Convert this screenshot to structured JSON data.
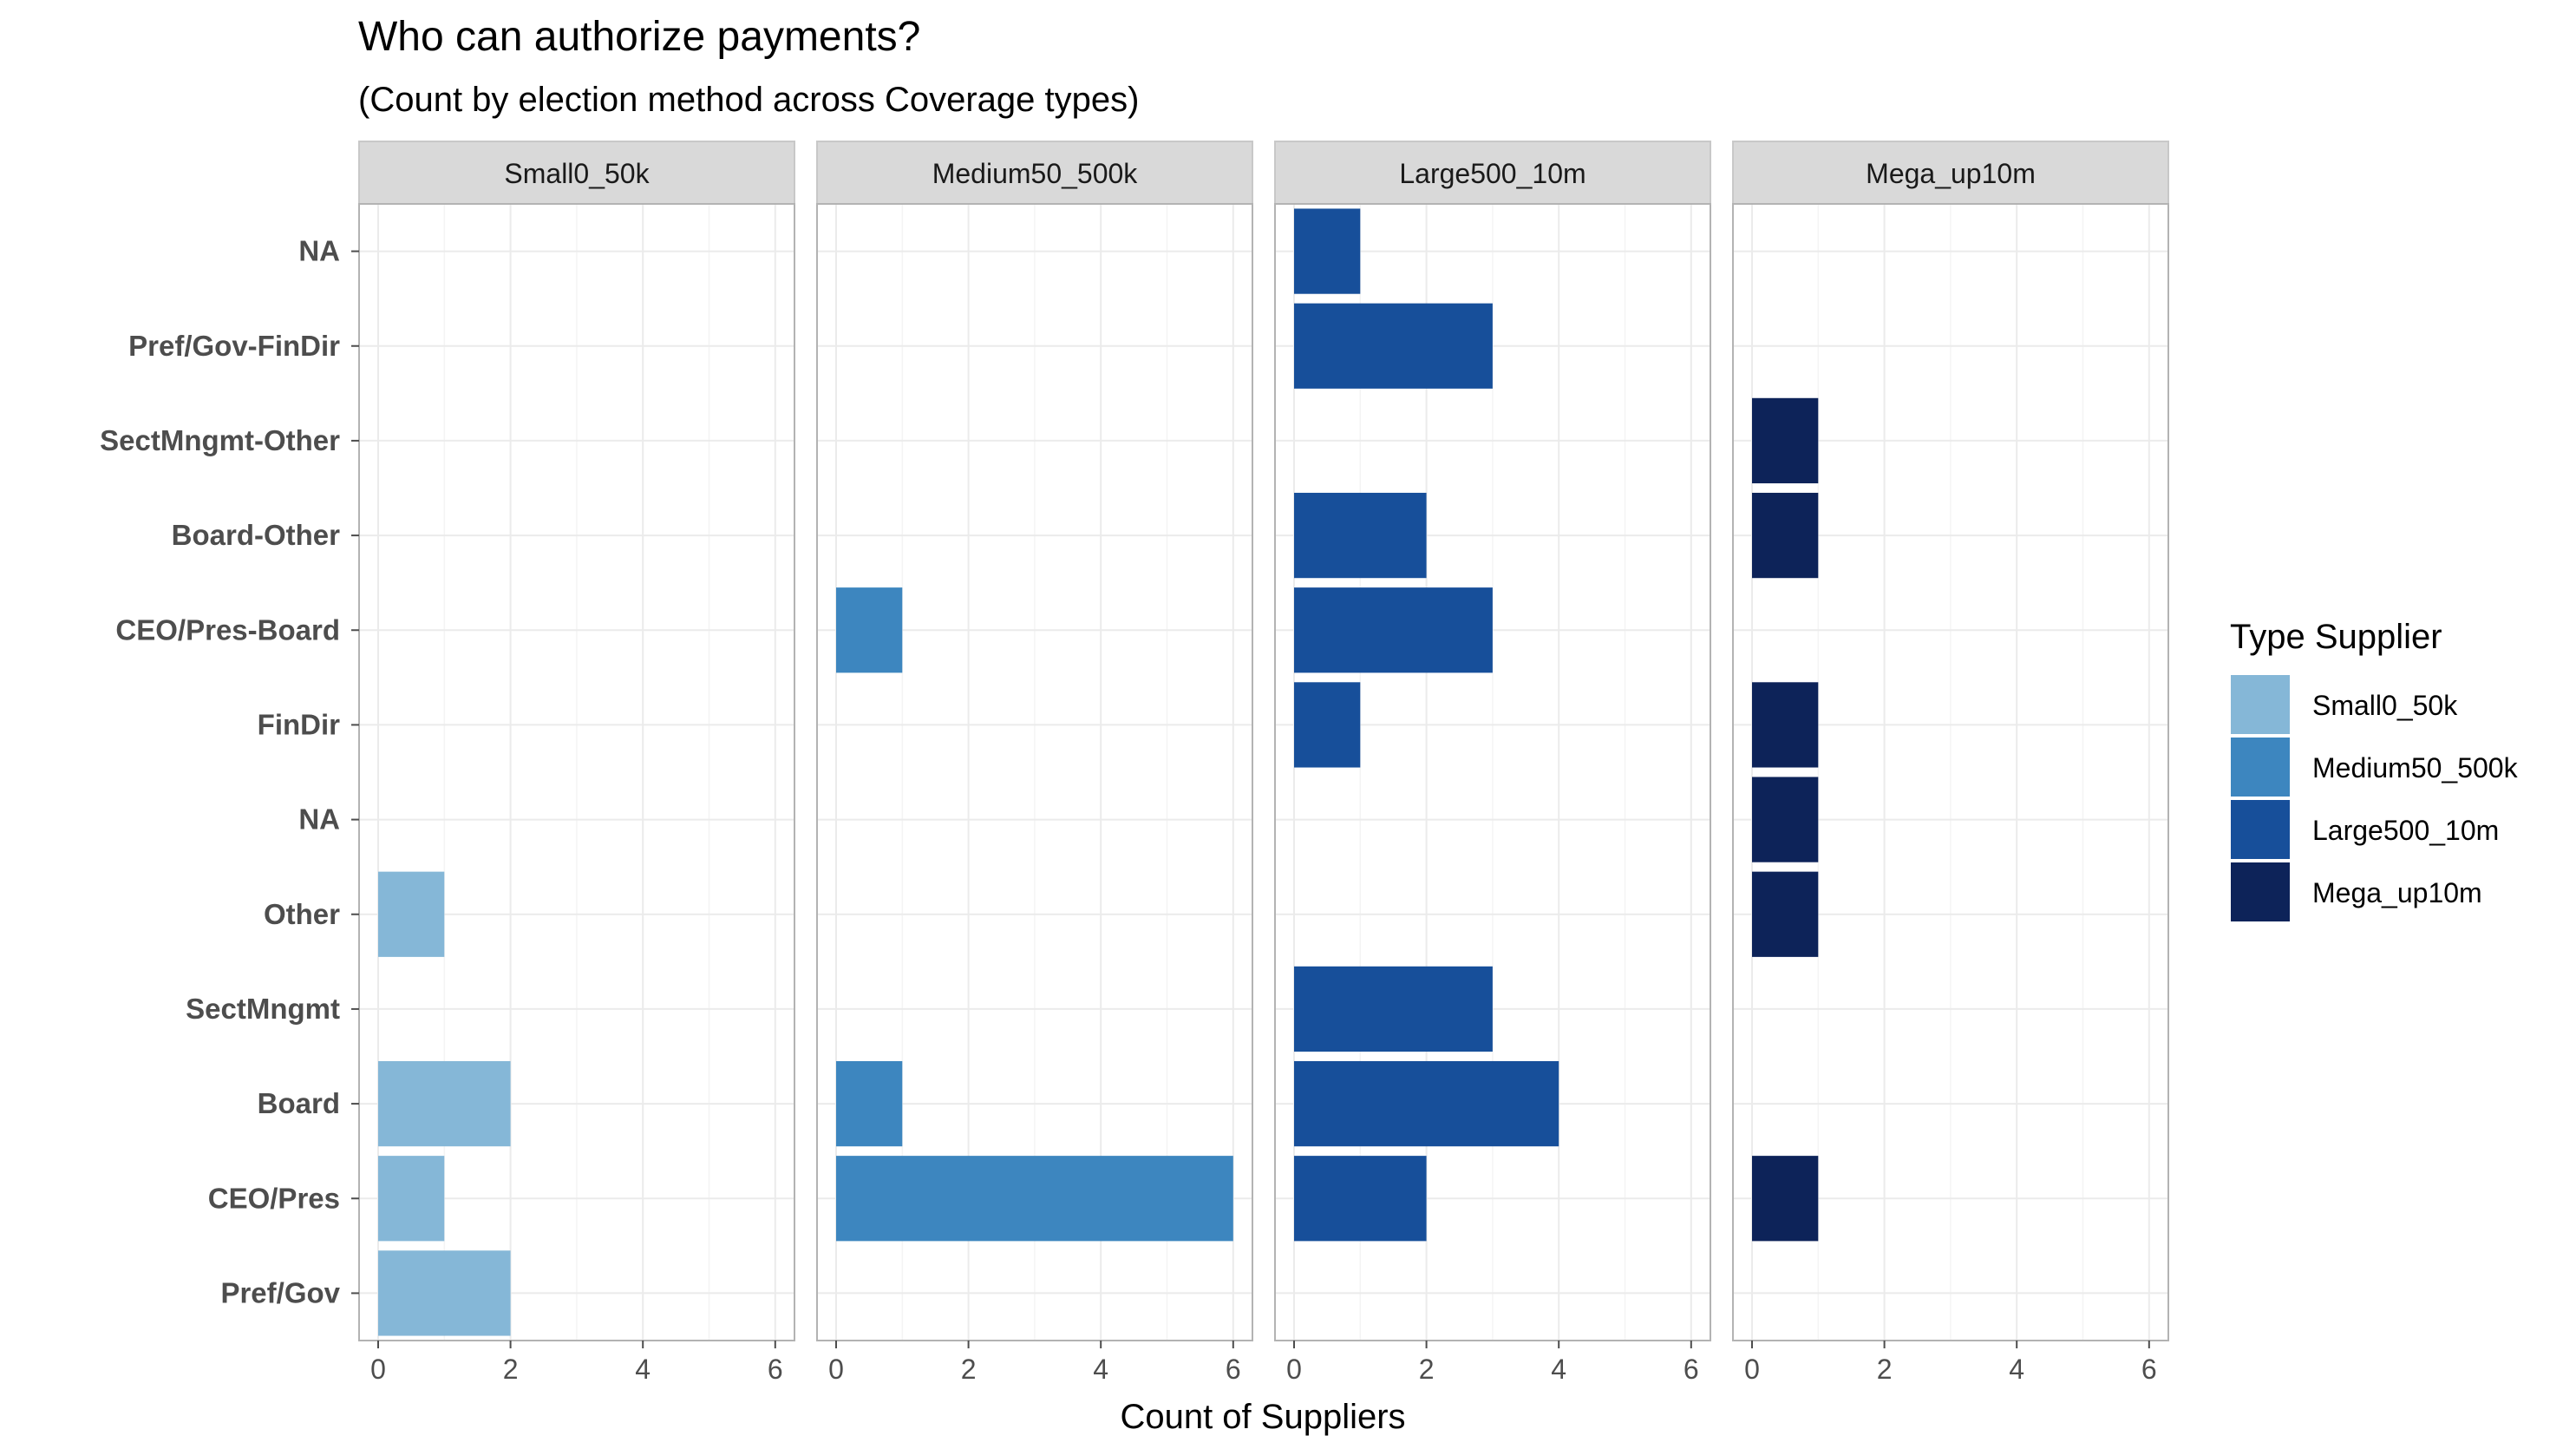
{
  "chart_data": {
    "type": "bar",
    "orientation": "horizontal",
    "title": "Who can authorize payments?",
    "subtitle": "(Count by election method across Coverage types)",
    "xlabel": "Count of Suppliers",
    "ylabel": "",
    "xlim": [
      0,
      6
    ],
    "xticks": [
      0,
      2,
      4,
      6
    ],
    "grid": true,
    "categories": [
      "NA",
      "Pref/Gov-FinDir",
      "SectMngmt-Other",
      "Board-Other",
      "CEO/Pres-Board",
      "FinDir",
      "NA",
      "Other",
      "SectMngmt",
      "Board",
      "CEO/Pres",
      "Pref/Gov"
    ],
    "legend": {
      "title": "Type Supplier",
      "position": "right",
      "items": [
        {
          "name": "Small0_50k",
          "color": "#85b7d7"
        },
        {
          "name": "Medium50_500k",
          "color": "#3d86bf"
        },
        {
          "name": "Large500_10m",
          "color": "#174f9a"
        },
        {
          "name": "Mega_up10m",
          "color": "#0d2359"
        }
      ]
    },
    "facets": [
      {
        "name": "Small0_50k",
        "color": "#85b7d7",
        "values": [
          0,
          0,
          0,
          0,
          0,
          0,
          0,
          1,
          0,
          2,
          1,
          2
        ]
      },
      {
        "name": "Medium50_500k",
        "color": "#3d86bf",
        "values": [
          0,
          0,
          0,
          0,
          1,
          0,
          0,
          0,
          0,
          1,
          6,
          0
        ]
      },
      {
        "name": "Large500_10m",
        "color": "#174f9a",
        "values": [
          1,
          3,
          0,
          2,
          3,
          1,
          0,
          0,
          3,
          4,
          2,
          0
        ]
      },
      {
        "name": "Mega_up10m",
        "color": "#0d2359",
        "values": [
          0,
          0,
          1,
          1,
          0,
          1,
          1,
          1,
          0,
          0,
          1,
          0
        ]
      }
    ]
  }
}
